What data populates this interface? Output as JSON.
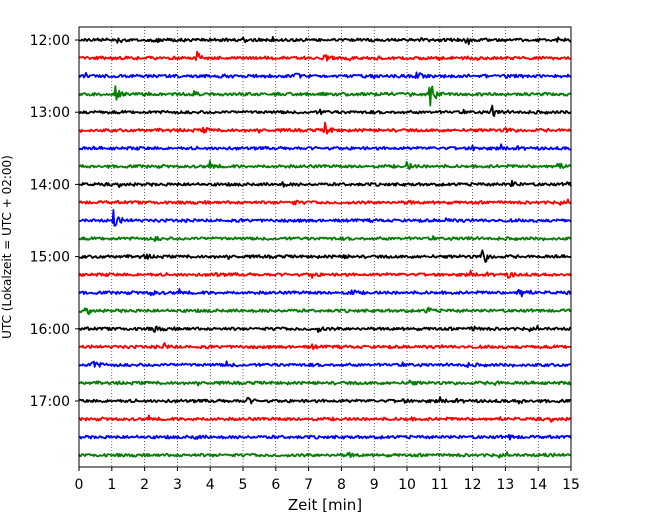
{
  "chart_data": {
    "type": "line",
    "title": "",
    "xlabel": "Zeit  [min]",
    "ylabel": "UTC (Lokalzeit = UTC + 02:00)",
    "xlim": [
      0,
      15
    ],
    "x_ticks": [
      0,
      1,
      2,
      3,
      4,
      5,
      6,
      7,
      8,
      9,
      10,
      11,
      12,
      13,
      14,
      15
    ],
    "y_ticks": [
      "12:00",
      "13:00",
      "14:00",
      "15:00",
      "16:00",
      "17:00"
    ],
    "row_interval_min": 15,
    "row_start": "12:00",
    "row_count": 24,
    "x_grid": true,
    "grid_style": "dotted",
    "trace_colors": [
      "#000000",
      "#ff0000",
      "#0000ff",
      "#008000"
    ],
    "series": [
      {
        "row_start": "12:00",
        "events": [
          {
            "x": 1.2,
            "amplitude": 0.25
          },
          {
            "x": 2.3,
            "amplitude": 0.2
          },
          {
            "x": 5.0,
            "amplitude": 0.2
          },
          {
            "x": 11.8,
            "amplitude": 0.2
          },
          {
            "x": 14.5,
            "amplitude": 0.25
          }
        ]
      },
      {
        "row_start": "12:15",
        "events": [
          {
            "x": 3.6,
            "amplitude": 0.45
          },
          {
            "x": 7.5,
            "amplitude": 0.2
          },
          {
            "x": 10.9,
            "amplitude": 0.15
          }
        ]
      },
      {
        "row_start": "12:30",
        "events": [
          {
            "x": 10.3,
            "amplitude": 0.45
          },
          {
            "x": 6.6,
            "amplitude": 0.2
          },
          {
            "x": 13.0,
            "amplitude": 0.2
          }
        ]
      },
      {
        "row_start": "12:45",
        "events": [
          {
            "x": 1.1,
            "amplitude": 0.6
          },
          {
            "x": 10.7,
            "amplitude": 1.55
          },
          {
            "x": 3.5,
            "amplitude": 0.15
          }
        ]
      },
      {
        "row_start": "13:00",
        "events": [
          {
            "x": 12.6,
            "amplitude": 0.75
          },
          {
            "x": 7.3,
            "amplitude": 0.2
          }
        ]
      },
      {
        "row_start": "13:15",
        "events": [
          {
            "x": 7.5,
            "amplitude": 0.55
          },
          {
            "x": 3.8,
            "amplitude": 0.25
          },
          {
            "x": 13.0,
            "amplitude": 0.2
          }
        ]
      },
      {
        "row_start": "13:30",
        "events": [
          {
            "x": 12.0,
            "amplitude": 0.15
          }
        ]
      },
      {
        "row_start": "13:45",
        "events": [
          {
            "x": 10.0,
            "amplitude": 0.35
          },
          {
            "x": 4.0,
            "amplitude": 0.2
          },
          {
            "x": 14.6,
            "amplitude": 0.25
          }
        ]
      },
      {
        "row_start": "14:00",
        "events": [
          {
            "x": 13.2,
            "amplitude": 0.25
          },
          {
            "x": 6.2,
            "amplitude": 0.15
          },
          {
            "x": 14.9,
            "amplitude": 0.2
          }
        ]
      },
      {
        "row_start": "14:15",
        "events": [
          {
            "x": 6.5,
            "amplitude": 0.2
          },
          {
            "x": 10.0,
            "amplitude": 0.15
          }
        ]
      },
      {
        "row_start": "14:30",
        "events": [
          {
            "x": 1.05,
            "amplitude": 0.95
          },
          {
            "x": 11.2,
            "amplitude": 0.15
          }
        ]
      },
      {
        "row_start": "14:45",
        "events": [
          {
            "x": 11.8,
            "amplitude": 0.2
          },
          {
            "x": 2.3,
            "amplitude": 0.15
          }
        ]
      },
      {
        "row_start": "15:00",
        "events": [
          {
            "x": 12.3,
            "amplitude": 0.85
          },
          {
            "x": 2.0,
            "amplitude": 0.2
          },
          {
            "x": 8.0,
            "amplitude": 0.15
          }
        ]
      },
      {
        "row_start": "15:15",
        "events": [
          {
            "x": 4.1,
            "amplitude": 0.2
          },
          {
            "x": 7.1,
            "amplitude": 0.2
          },
          {
            "x": 13.1,
            "amplitude": 0.25
          }
        ]
      },
      {
        "row_start": "15:30",
        "events": [
          {
            "x": 13.4,
            "amplitude": 0.6
          },
          {
            "x": 2.2,
            "amplitude": 0.25
          },
          {
            "x": 8.3,
            "amplitude": 0.2
          }
        ]
      },
      {
        "row_start": "15:45",
        "events": [
          {
            "x": 10.6,
            "amplitude": 0.25
          },
          {
            "x": 0.2,
            "amplitude": 0.2
          }
        ]
      },
      {
        "row_start": "16:00",
        "events": [
          {
            "x": 2.3,
            "amplitude": 0.25
          },
          {
            "x": 7.3,
            "amplitude": 0.2
          },
          {
            "x": 12.0,
            "amplitude": 0.2
          }
        ]
      },
      {
        "row_start": "16:15",
        "events": [
          {
            "x": 2.6,
            "amplitude": 0.25
          },
          {
            "x": 7.1,
            "amplitude": 0.15
          }
        ]
      },
      {
        "row_start": "16:30",
        "events": [
          {
            "x": 0.4,
            "amplitude": 0.55
          },
          {
            "x": 4.5,
            "amplitude": 0.2
          },
          {
            "x": 11.8,
            "amplitude": 0.15
          }
        ]
      },
      {
        "row_start": "16:45",
        "events": [
          {
            "x": 10.1,
            "amplitude": 0.2
          },
          {
            "x": 12.6,
            "amplitude": 0.25
          }
        ]
      },
      {
        "row_start": "17:00",
        "events": [
          {
            "x": 5.15,
            "amplitude": 0.25
          },
          {
            "x": 9.8,
            "amplitude": 0.2
          },
          {
            "x": 13.4,
            "amplitude": 0.15
          }
        ]
      },
      {
        "row_start": "17:15",
        "events": [
          {
            "x": 3.3,
            "amplitude": 0.15
          },
          {
            "x": 10.0,
            "amplitude": 0.12
          }
        ]
      },
      {
        "row_start": "17:30",
        "events": [
          {
            "x": 3.5,
            "amplitude": 0.2
          },
          {
            "x": 13.1,
            "amplitude": 0.2
          }
        ]
      },
      {
        "row_start": "17:45",
        "events": [
          {
            "x": 8.2,
            "amplitude": 0.2
          },
          {
            "x": 14.1,
            "amplitude": 0.15
          }
        ]
      }
    ]
  }
}
